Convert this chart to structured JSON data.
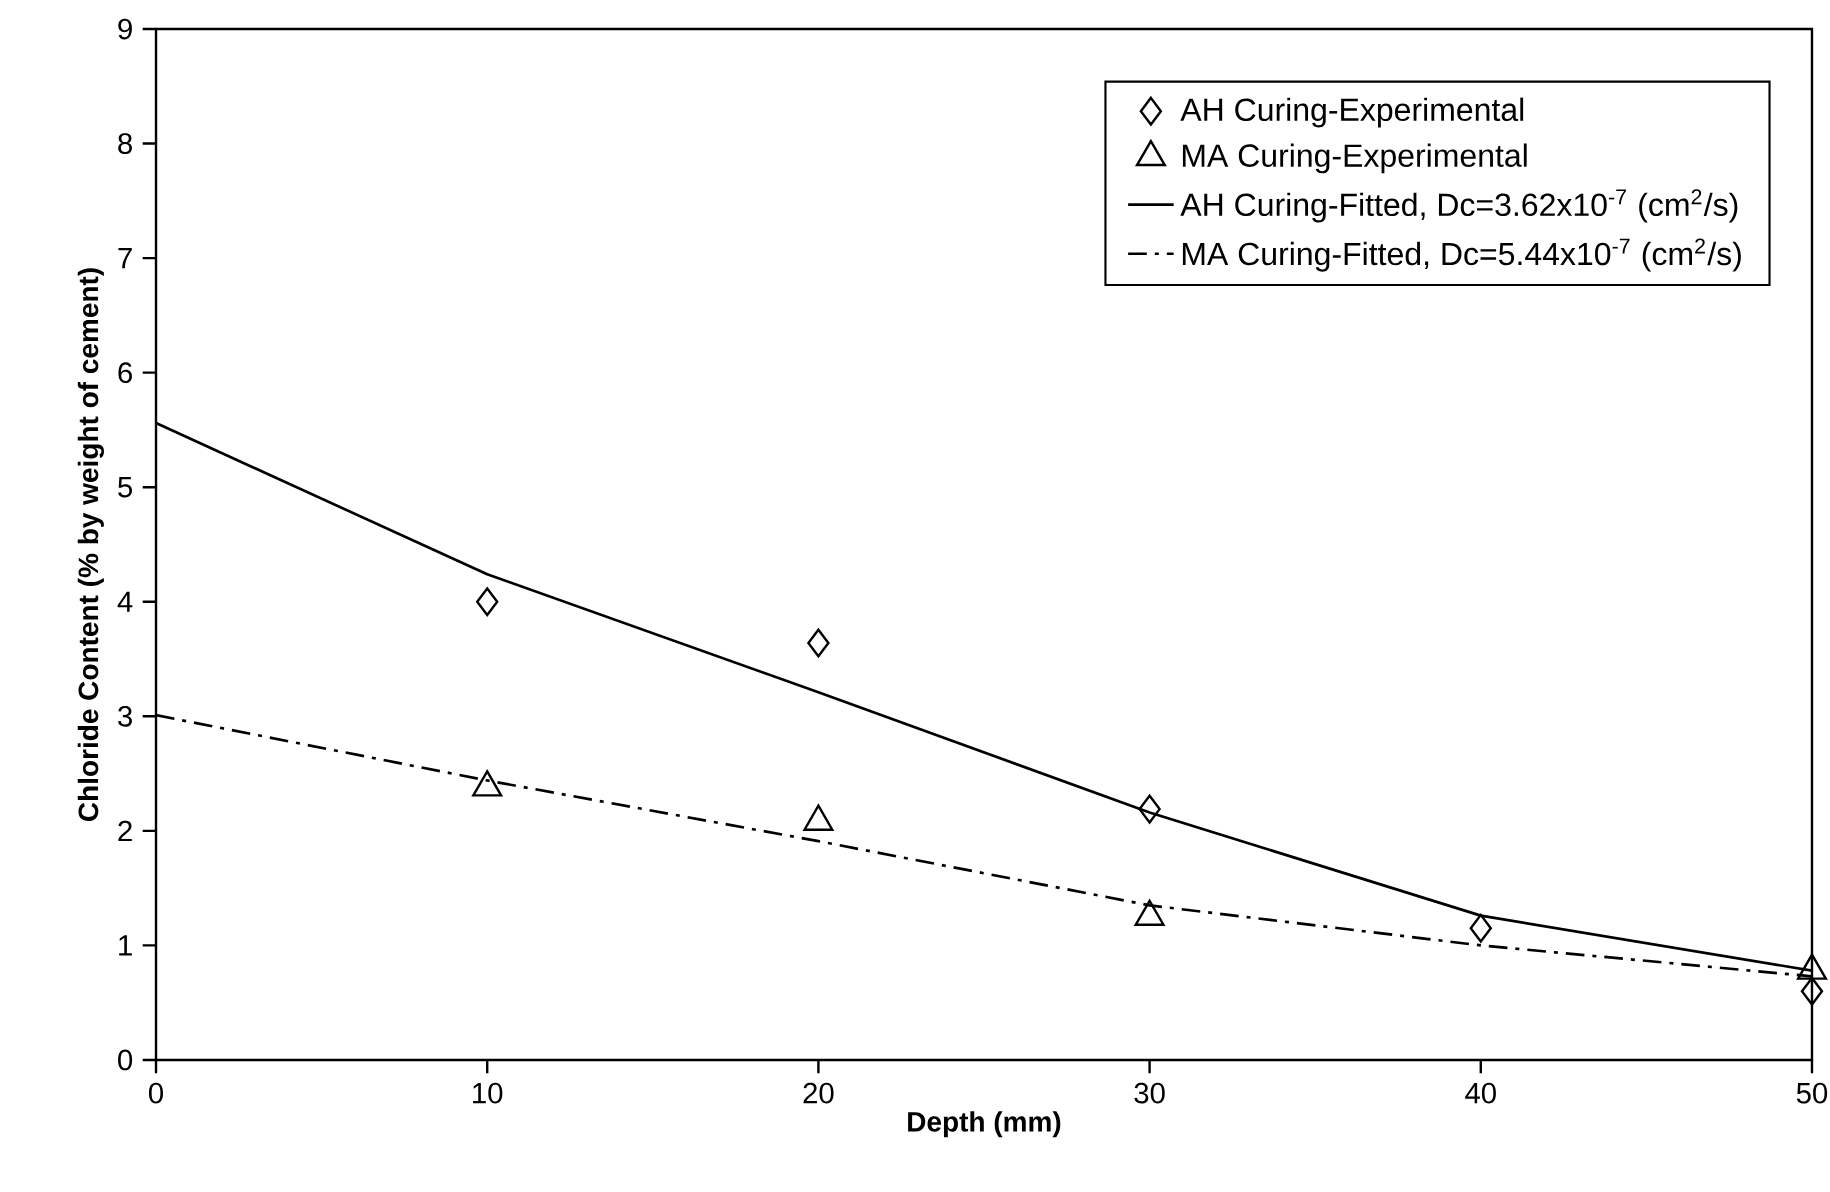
{
  "chart_data": {
    "type": "scatter",
    "xlabel": "Depth (mm)",
    "ylabel": "Chloride Content (% by weight of cement)",
    "xlim": [
      0,
      50
    ],
    "xticks": [
      0,
      10,
      20,
      30,
      40,
      50
    ],
    "ylim": [
      0,
      9
    ],
    "yticks": [
      0,
      1,
      2,
      3,
      4,
      5,
      6,
      7,
      8,
      9
    ],
    "grid": false,
    "legend": "top right",
    "series": [
      {
        "name": "AH Curing-Experimental",
        "marker": "diamond",
        "color": "#000000",
        "x": [
          10,
          20,
          30,
          40,
          50
        ],
        "values": [
          4.0,
          3.64,
          2.19,
          1.15,
          0.6
        ]
      },
      {
        "name": "MA Curing-Experimental",
        "marker": "triangle",
        "color": "#000000",
        "x": [
          10,
          20,
          30,
          50
        ],
        "values": [
          2.38,
          2.08,
          1.25,
          0.78
        ]
      },
      {
        "name": "AH Curing-Fitted,   Dc=3.62x10$^{-7}$ (cm$^{2}$/s)",
        "type": "line",
        "marker": "none",
        "line_style": "solid",
        "color": "#000000",
        "x": [
          0,
          10,
          20,
          30,
          40,
          50
        ],
        "values": [
          5.56,
          4.24,
          3.21,
          2.16,
          1.26,
          0.78
        ]
      },
      {
        "name": "MA Curing-Fitted,   Dc=5.44x10$^{-7}$ (cm$^{2}$/s)",
        "type": "line",
        "marker": "none",
        "line_style": "dashdot",
        "color": "#000000",
        "x": [
          0,
          10,
          20,
          30,
          40,
          50
        ],
        "values": [
          3.01,
          2.44,
          1.91,
          1.35,
          1.0,
          0.73
        ]
      }
    ]
  }
}
